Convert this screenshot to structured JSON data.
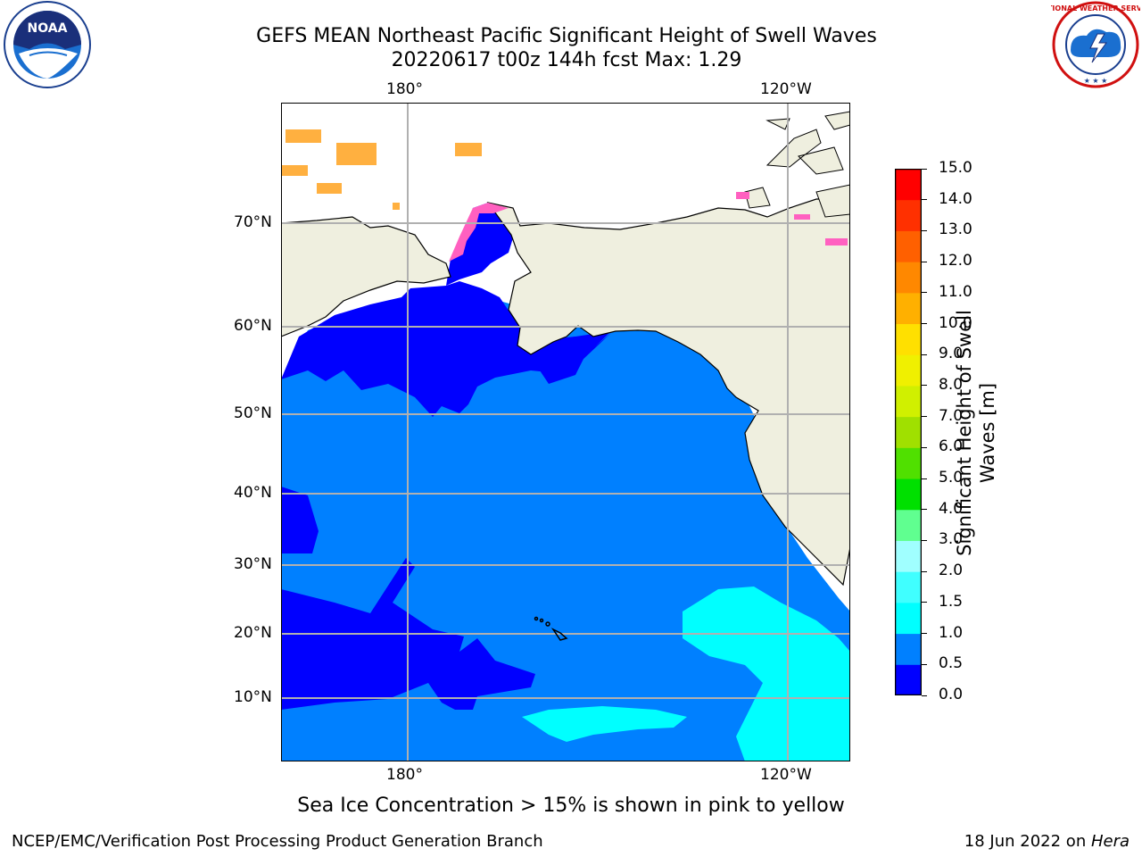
{
  "title_line1": "GEFS MEAN Northeast Pacific Significant Height of Swell Waves",
  "title_line2": "20220617 t00z 144h fcst   Max: 1.29",
  "map": {
    "top_lon_labels": [
      "180°",
      "120°W"
    ],
    "bottom_lon_labels": [
      "180°",
      "120°W"
    ],
    "lat_labels": [
      "70°N",
      "60°N",
      "50°N",
      "40°N",
      "30°N",
      "20°N",
      "10°N"
    ],
    "ocean_color_low": "#0000ff",
    "ocean_color_mid": "#0080ff",
    "ocean_color_high": "#00ffff",
    "land_color": "#efefdf",
    "grid_color": "#b0b0b0"
  },
  "colorbar": {
    "label": "Significant Height of Swell\nWaves [m]",
    "ticks": [
      "0.0",
      "0.5",
      "1.0",
      "1.5",
      "2.0",
      "3.0",
      "4.0",
      "5.0",
      "6.0",
      "7.0",
      "8.0",
      "9.0",
      "10.0",
      "11.0",
      "12.0",
      "13.0",
      "14.0",
      "15.0"
    ],
    "colors": [
      "#0000ff",
      "#0080ff",
      "#00ffff",
      "#40ffff",
      "#a0ffff",
      "#60ff90",
      "#00e000",
      "#50e000",
      "#a0e000",
      "#d0f000",
      "#f0f000",
      "#ffe000",
      "#ffb000",
      "#ff8800",
      "#ff6000",
      "#ff3000",
      "#ff0000"
    ]
  },
  "ice_note": "Sea Ice Concentration > 15% is shown in pink to yellow",
  "footer_left": "NCEP/EMC/Verification Post Processing Product Generation Branch",
  "footer_right_prefix": "18 Jun 2022 on ",
  "footer_right_host": "Hera",
  "logos": {
    "left_text": "NOAA",
    "left_ring_text": "NATIONAL OCEANIC AND ATMOSPHERIC ADMINISTRATION · U.S. DEPARTMENT OF COMMERCE",
    "right_ring_text": "NATIONAL WEATHER SERVICE"
  }
}
